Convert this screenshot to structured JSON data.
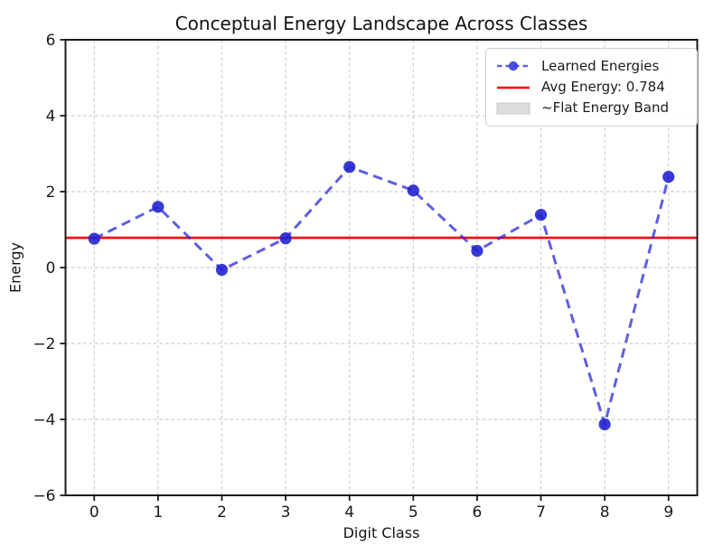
{
  "figure": {
    "title": "Conceptual Energy Landscape Across Classes",
    "xlabel": "Digit Class",
    "ylabel": "Energy"
  },
  "legend": {
    "items": [
      {
        "label": "Learned Energies",
        "glyph": "dashed-line-with-marker",
        "color": "#3a3ae0"
      },
      {
        "label": "Avg Energy: 0.784",
        "glyph": "solid-line",
        "color": "#ff0000"
      },
      {
        "label": "~Flat Energy Band",
        "glyph": "filled-patch",
        "color": "#dcdcdc"
      }
    ]
  },
  "chart_data": {
    "type": "line",
    "title": "Conceptual Energy Landscape Across Classes",
    "xlabel": "Digit Class",
    "ylabel": "Energy",
    "x": [
      0,
      1,
      2,
      3,
      4,
      5,
      6,
      7,
      8,
      9
    ],
    "series": [
      {
        "name": "Learned Energies",
        "values": [
          0.76,
          1.6,
          -0.06,
          0.77,
          2.65,
          2.03,
          0.44,
          1.39,
          -4.13,
          2.39
        ],
        "line_style": "dashed",
        "marker": "circle"
      }
    ],
    "avg_line": {
      "label": "Avg Energy: 0.784",
      "value": 0.784,
      "color": "#ff0000"
    },
    "band_label": "~Flat Energy Band",
    "xlim": [
      -0.45,
      9.45
    ],
    "ylim": [
      -6,
      6
    ],
    "xticks": [
      0,
      1,
      2,
      3,
      4,
      5,
      6,
      7,
      8,
      9
    ],
    "yticks": [
      6,
      4,
      2,
      0,
      -2,
      -4,
      -6
    ],
    "grid": true,
    "legend_position": "upper right",
    "style": {
      "line_color": "#2a2ad9",
      "line_opacity": 0.75,
      "marker_color": "#2424d2",
      "marker_opacity": 0.9,
      "grid_color": "#cdcdcd",
      "spine_color": "#1a1a1a",
      "tick_label_color": "#1a1a1a"
    }
  }
}
